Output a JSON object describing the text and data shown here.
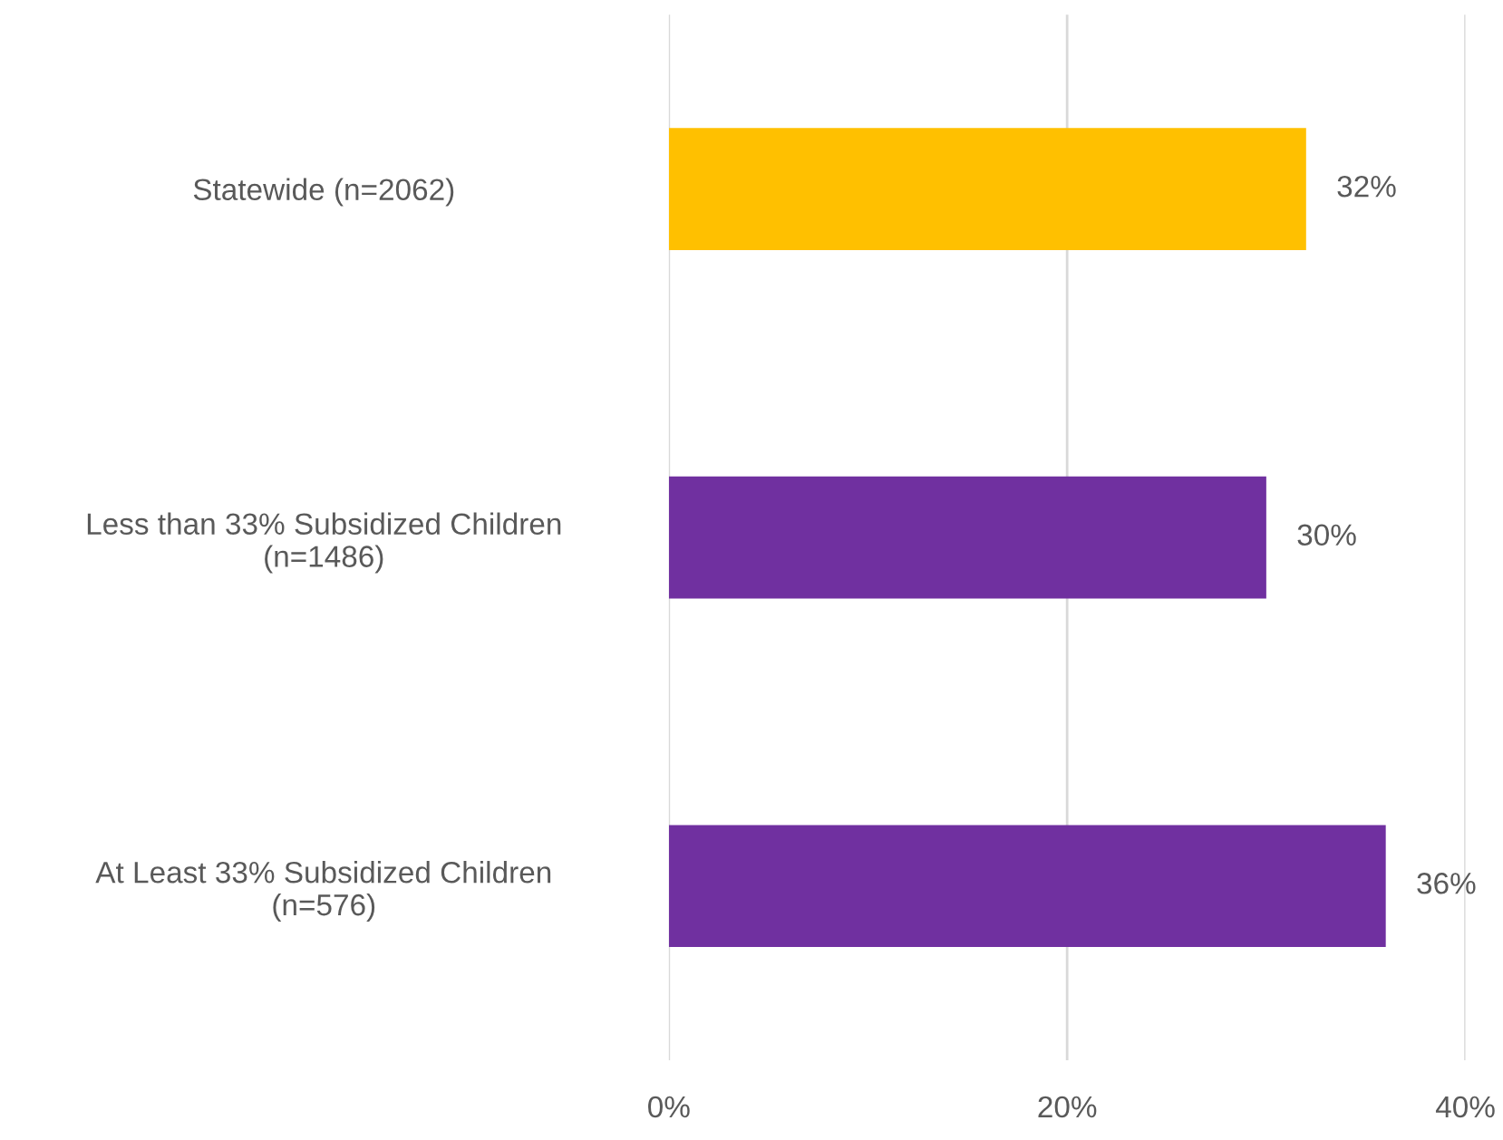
{
  "chart_data": {
    "type": "bar",
    "orientation": "horizontal",
    "categories": [
      "Statewide (n=2062)",
      "Less than 33% Subsidized Children\n(n=1486)",
      "At Least 33% Subsidized Children\n(n=576)"
    ],
    "values": [
      32,
      30,
      36
    ],
    "colors": [
      "#ffc000",
      "#7030a0",
      "#7030a0"
    ],
    "value_labels": [
      "32%",
      "30%",
      "36%"
    ],
    "xlim": [
      0,
      40
    ],
    "xticks": [
      {
        "value": 0,
        "label": "0%"
      },
      {
        "value": 20,
        "label": "20%"
      },
      {
        "value": 40,
        "label": "40%"
      }
    ],
    "grid": "x",
    "legend": false
  }
}
